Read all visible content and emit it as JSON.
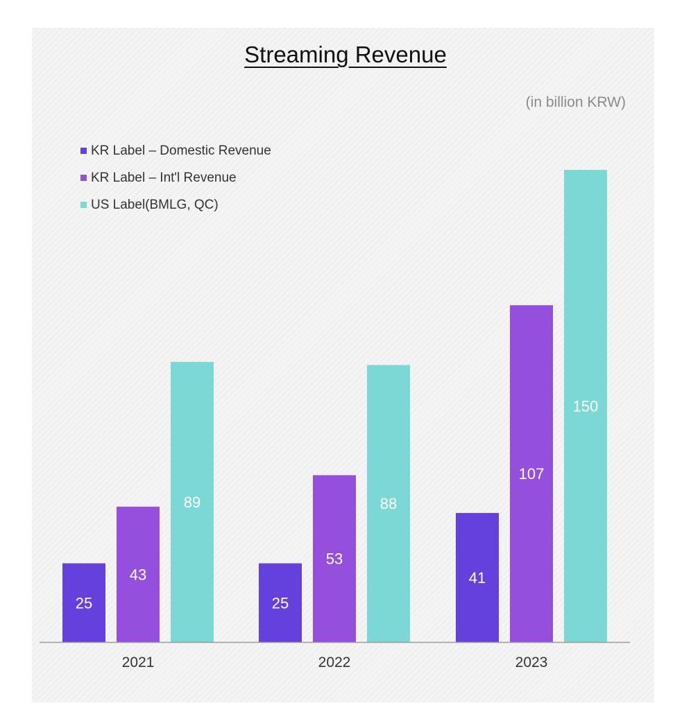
{
  "chart_data": {
    "type": "bar",
    "title": "Streaming Revenue",
    "unit_note": "(in billion KRW)",
    "categories": [
      "2021",
      "2022",
      "2023"
    ],
    "series": [
      {
        "name": "KR Label – Domestic Revenue",
        "values": [
          25,
          25,
          41
        ],
        "color": "#6440dc"
      },
      {
        "name": "KR Label – Int'l Revenue",
        "values": [
          43,
          53,
          107
        ],
        "color": "#9450dc"
      },
      {
        "name": "US Label(BMLG, QC)",
        "values": [
          89,
          88,
          150
        ],
        "color": "#7cd8d4"
      }
    ],
    "ylim": [
      0,
      165
    ],
    "grid": false,
    "legend_position": "top-left",
    "data_label_color": "#ffffff",
    "axis_color": "#9a9a9a"
  }
}
